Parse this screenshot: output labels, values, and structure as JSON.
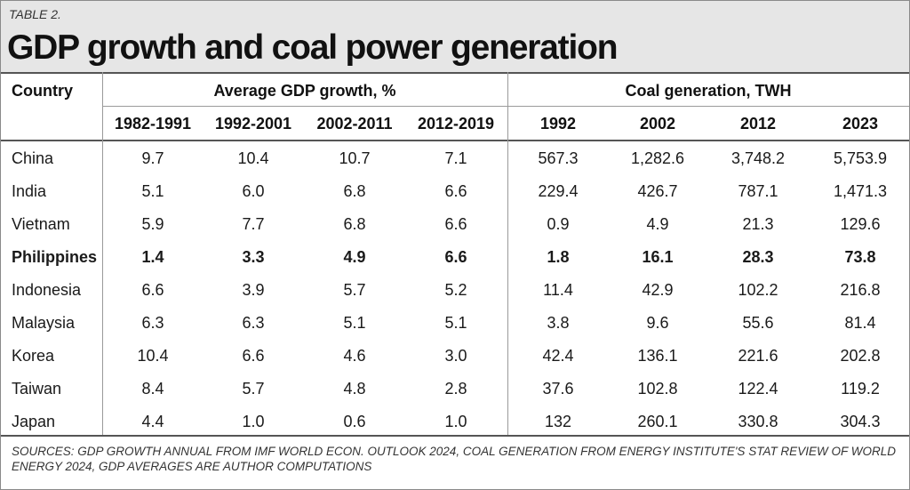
{
  "table_label": "TABLE 2.",
  "title": "GDP growth and coal power generation",
  "headers": {
    "country": "Country",
    "gdp_group": "Average GDP growth, %",
    "coal_group": "Coal generation, TWH",
    "gdp_periods": [
      "1982-1991",
      "1992-2001",
      "2002-2011",
      "2012-2019"
    ],
    "coal_years": [
      "1992",
      "2002",
      "2012",
      "2023"
    ]
  },
  "rows": [
    {
      "country": "China",
      "gdp": [
        "9.7",
        "10.4",
        "10.7",
        "7.1"
      ],
      "coal": [
        "567.3",
        "1,282.6",
        "3,748.2",
        "5,753.9"
      ],
      "bold": false
    },
    {
      "country": "India",
      "gdp": [
        "5.1",
        "6.0",
        "6.8",
        "6.6"
      ],
      "coal": [
        "229.4",
        "426.7",
        "787.1",
        "1,471.3"
      ],
      "bold": false
    },
    {
      "country": "Vietnam",
      "gdp": [
        "5.9",
        "7.7",
        "6.8",
        "6.6"
      ],
      "coal": [
        "0.9",
        "4.9",
        "21.3",
        "129.6"
      ],
      "bold": false
    },
    {
      "country": "Philippines",
      "gdp": [
        "1.4",
        "3.3",
        "4.9",
        "6.6"
      ],
      "coal": [
        "1.8",
        "16.1",
        "28.3",
        "73.8"
      ],
      "bold": true
    },
    {
      "country": "Indonesia",
      "gdp": [
        "6.6",
        "3.9",
        "5.7",
        "5.2"
      ],
      "coal": [
        "11.4",
        "42.9",
        "102.2",
        "216.8"
      ],
      "bold": false
    },
    {
      "country": "Malaysia",
      "gdp": [
        "6.3",
        "6.3",
        "5.1",
        "5.1"
      ],
      "coal": [
        "3.8",
        "9.6",
        "55.6",
        "81.4"
      ],
      "bold": false
    },
    {
      "country": "Korea",
      "gdp": [
        "10.4",
        "6.6",
        "4.6",
        "3.0"
      ],
      "coal": [
        "42.4",
        "136.1",
        "221.6",
        "202.8"
      ],
      "bold": false
    },
    {
      "country": "Taiwan",
      "gdp": [
        "8.4",
        "5.7",
        "4.8",
        "2.8"
      ],
      "coal": [
        "37.6",
        "102.8",
        "122.4",
        "119.2"
      ],
      "bold": false
    },
    {
      "country": "Japan",
      "gdp": [
        "4.4",
        "1.0",
        "0.6",
        "1.0"
      ],
      "coal": [
        "132",
        "260.1",
        "330.8",
        "304.3"
      ],
      "bold": false
    }
  ],
  "footer": "SOURCES: GDP GROWTH ANNUAL FROM IMF WORLD ECON. OUTLOOK 2024, COAL GENERATION FROM ENERGY INSTITUTE'S STAT REVIEW OF WORLD ENERGY 2024, GDP AVERAGES ARE AUTHOR COMPUTATIONS",
  "colors": {
    "header_bg": "#e6e6e6",
    "rule": "#9a9a9a"
  }
}
